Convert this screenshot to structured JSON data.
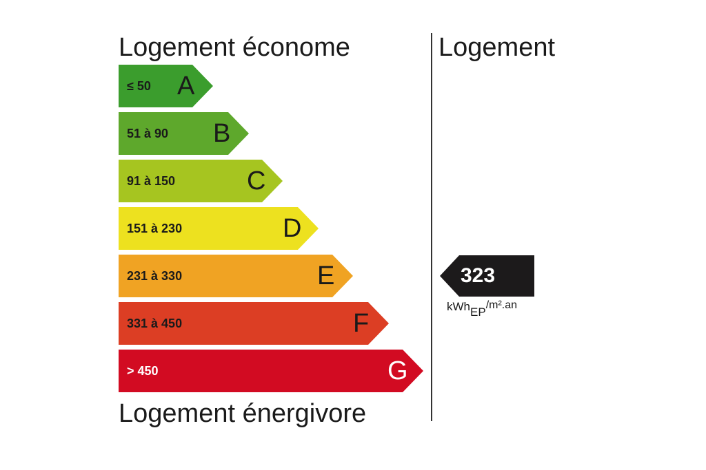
{
  "labels": {
    "top": "Logement économe",
    "bottom": "Logement énergivore",
    "right_title": "Logement"
  },
  "classes": [
    {
      "letter": "A",
      "range": "≤ 50",
      "color": "#3b9d2d",
      "text_color": "#1a1a1a"
    },
    {
      "letter": "B",
      "range": "51 à 90",
      "color": "#5ea82c",
      "text_color": "#1a1a1a"
    },
    {
      "letter": "C",
      "range": "91 à 150",
      "color": "#a6c520",
      "text_color": "#1a1a1a"
    },
    {
      "letter": "D",
      "range": "151 à 230",
      "color": "#ede11f",
      "text_color": "#1a1a1a"
    },
    {
      "letter": "E",
      "range": "231 à 330",
      "color": "#f0a323",
      "text_color": "#1a1a1a"
    },
    {
      "letter": "F",
      "range": "331 à 450",
      "color": "#dc3e24",
      "text_color": "#1a1a1a"
    },
    {
      "letter": "G",
      "range": "> 450",
      "color": "#d20b22",
      "text_color": "#ffffff"
    }
  ],
  "result": {
    "value": "323",
    "class": "E",
    "marker_color": "#1c1a1b",
    "unit_main": "kWh",
    "unit_sub": "EP",
    "unit_sup": "/m².an"
  }
}
